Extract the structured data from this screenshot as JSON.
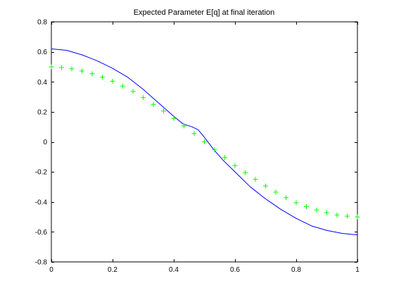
{
  "chart_data": {
    "type": "line",
    "title": "Expected Parameter E[q] at final iteration",
    "xlabel": "",
    "ylabel": "",
    "xlim": [
      0,
      1
    ],
    "ylim": [
      -0.8,
      0.8
    ],
    "grid": false,
    "x_ticks": [
      "0",
      "0.2",
      "0.4",
      "0.6",
      "0.8",
      "1"
    ],
    "x_tick_values": [
      0,
      0.2,
      0.4,
      0.6,
      0.8,
      1
    ],
    "y_ticks": [
      "-0.8",
      "-0.6",
      "-0.4",
      "-0.2",
      "0",
      "0.2",
      "0.4",
      "0.6",
      "0.8"
    ],
    "y_tick_values": [
      -0.8,
      -0.6,
      -0.4,
      -0.2,
      0,
      0.2,
      0.4,
      0.6,
      0.8
    ],
    "series": [
      {
        "style": "line",
        "color": "#0000ff",
        "x": [
          0,
          0.05,
          0.1,
          0.15,
          0.2,
          0.25,
          0.3,
          0.35,
          0.4,
          0.43,
          0.46,
          0.48,
          0.5,
          0.53,
          0.56,
          0.6,
          0.65,
          0.7,
          0.75,
          0.8,
          0.85,
          0.9,
          0.95,
          1.0
        ],
        "y": [
          0.62,
          0.61,
          0.58,
          0.54,
          0.49,
          0.43,
          0.35,
          0.26,
          0.17,
          0.12,
          0.1,
          0.08,
          0.03,
          -0.05,
          -0.12,
          -0.2,
          -0.3,
          -0.38,
          -0.45,
          -0.51,
          -0.56,
          -0.59,
          -0.61,
          -0.62
        ]
      },
      {
        "style": "marker-plus",
        "color": "#00ff00",
        "x": [
          0.0,
          0.0333,
          0.0667,
          0.1,
          0.1333,
          0.1667,
          0.2,
          0.2333,
          0.2667,
          0.3,
          0.3333,
          0.3667,
          0.4,
          0.4333,
          0.4667,
          0.5,
          0.5333,
          0.5667,
          0.6,
          0.6333,
          0.6667,
          0.7,
          0.7333,
          0.7667,
          0.8,
          0.8333,
          0.8667,
          0.9,
          0.9333,
          0.9667,
          1.0
        ],
        "y": [
          0.5,
          0.495,
          0.487,
          0.472,
          0.454,
          0.431,
          0.404,
          0.372,
          0.336,
          0.295,
          0.25,
          0.205,
          0.156,
          0.106,
          0.055,
          0.0,
          -0.053,
          -0.105,
          -0.158,
          -0.205,
          -0.25,
          -0.294,
          -0.335,
          -0.372,
          -0.405,
          -0.431,
          -0.454,
          -0.472,
          -0.487,
          -0.495,
          -0.5
        ]
      }
    ]
  }
}
